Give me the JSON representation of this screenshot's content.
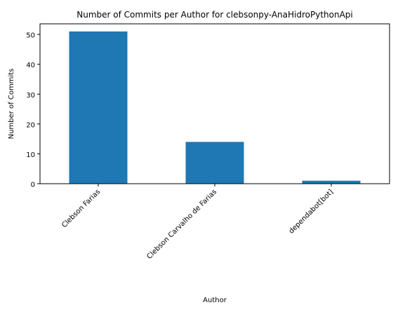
{
  "chart_data": {
    "type": "bar",
    "title": "Number of Commits per Author for clebsonpy-AnaHidroPythonApi",
    "xlabel": "Author",
    "ylabel": "Number of Commits",
    "categories": [
      "Clebson Farias",
      "Clebson Carvalho de Farias",
      "dependabot[bot]"
    ],
    "values": [
      51,
      14,
      1
    ],
    "ylim": [
      0,
      53.55
    ],
    "yticks": [
      0,
      10,
      20,
      30,
      40,
      50
    ],
    "bar_color": "#1f77b4",
    "grid": false,
    "legend": "none"
  }
}
